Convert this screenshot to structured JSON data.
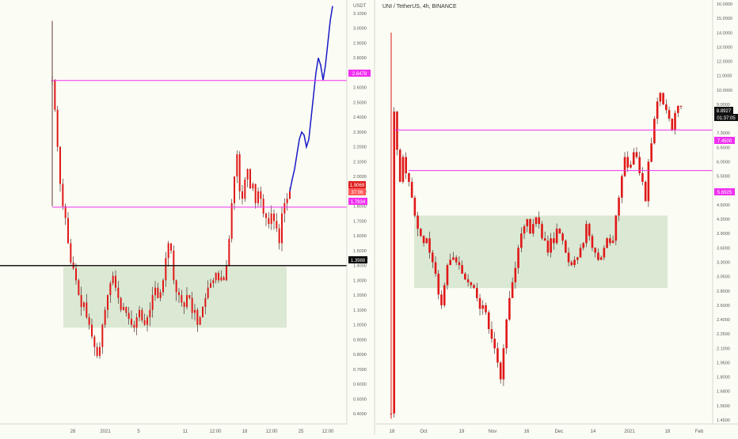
{
  "colors": {
    "background": "#fbfcf3",
    "panel_border": "#d8d8d0",
    "axis_text": "#5c5c5c",
    "candle": "#e01818",
    "candle_wick": "#3a1010",
    "magenta": "#f030f0",
    "zone": "#dbe8d3",
    "projection": "#1a1ac8",
    "black_line": "#000000",
    "volume_bar": "#e06060"
  },
  "left_chart": {
    "currency_label": "USDT",
    "price_tags": {
      "upper_level": "2.6478",
      "current_price": "1.9069",
      "countdown": "37:06",
      "lower_level": "1.7934",
      "black_level": "1.3988"
    }
  },
  "right_chart": {
    "title": "UNI / TetherUS, 4h, BINANCE",
    "price_tags": {
      "current_price": "8.8927",
      "countdown": "01:37:05",
      "upper_level": "7.4500",
      "lower_level": "5.6925"
    }
  },
  "chart_data": [
    {
      "type": "line",
      "title": "",
      "xlabel": "",
      "ylabel": "",
      "y_axis": {
        "scale": "linear",
        "ticks": [
          "3.1000",
          "3.0000",
          "2.9000",
          "2.8000",
          "2.7000",
          "2.6000",
          "2.5000",
          "2.4000",
          "2.3000",
          "2.2000",
          "2.1000",
          "2.0000",
          "1.9000",
          "1.8000",
          "1.7000",
          "1.6000",
          "1.5000",
          "1.4000",
          "1.3000",
          "1.2000",
          "1.1000",
          "1.0000",
          "0.9000",
          "0.8000",
          "0.7000",
          "0.6000",
          "0.5000",
          "0.4000"
        ]
      },
      "x_axis": {
        "ticks": [
          "28",
          "2021",
          "5",
          "11",
          "12:00",
          "18",
          "12:00",
          "25",
          "12:00"
        ]
      },
      "horizontal_levels": [
        {
          "value": 2.6478,
          "color": "magenta"
        },
        {
          "value": 1.7934,
          "color": "magenta"
        },
        {
          "value": 1.3988,
          "color": "black"
        }
      ],
      "zone": {
        "low": 0.98,
        "high": 1.39
      },
      "series": [
        {
          "values": [
            2.65,
            2.45,
            2.2,
            1.95,
            1.8,
            1.72,
            1.55,
            1.42,
            1.38,
            1.3,
            1.2,
            1.12,
            1.15,
            1.05,
            1.0,
            0.92,
            0.85,
            0.79,
            0.85,
            1.0,
            1.1,
            1.2,
            1.28,
            1.33,
            1.25,
            1.18,
            1.1,
            1.12,
            1.08,
            1.04,
            1.0,
            0.98,
            1.05,
            1.1,
            1.03,
            1.0,
            1.05,
            1.1,
            1.2,
            1.25,
            1.18,
            1.22,
            1.3,
            1.45,
            1.55,
            1.5,
            1.3,
            1.22,
            1.2,
            1.15,
            1.12,
            1.2,
            1.18,
            1.08,
            1.1,
            1.0,
            1.05,
            1.12,
            1.18,
            1.25,
            1.28,
            1.3,
            1.35,
            1.3,
            1.32,
            1.3,
            1.4,
            1.58,
            1.82,
            2.0,
            2.15,
            1.9,
            1.85,
            1.98,
            2.05,
            1.92,
            1.95,
            1.82,
            1.9,
            1.85,
            1.75,
            1.72,
            1.68,
            1.75,
            1.7,
            1.65,
            1.55,
            1.75,
            1.82,
            1.85,
            1.9
          ]
        },
        {
          "name": "",
          "values": [
            1.9,
            1.98,
            2.05,
            2.15,
            2.25,
            2.3,
            2.28,
            2.2,
            2.25,
            2.4,
            2.55,
            2.7,
            2.8,
            2.75,
            2.65,
            2.75,
            2.9,
            3.05,
            3.15
          ]
        }
      ]
    },
    {
      "type": "line",
      "title": "UNI / TetherUS, 4h, BINANCE",
      "xlabel": "",
      "ylabel": "",
      "y_axis": {
        "scale": "log",
        "ticks": [
          "16.0000",
          "15.0000",
          "14.0000",
          "13.0000",
          "12.0000",
          "11.0000",
          "10.0000",
          "9.0000",
          "8.0000",
          "7.3000",
          "6.6000",
          "6.0000",
          "5.5000",
          "5.0000",
          "4.6000",
          "4.2000",
          "3.9000",
          "3.6000",
          "3.3000",
          "3.0500",
          "2.8000",
          "2.6000",
          "2.4000",
          "2.2500",
          "2.1000",
          "1.9500",
          "1.8000",
          "1.6800",
          "1.5600",
          "1.4500"
        ]
      },
      "x_axis": {
        "ticks": [
          "18",
          "Oct",
          "19",
          "Nov",
          "16",
          "Dec",
          "14",
          "2021",
          "18",
          "Feb"
        ]
      },
      "horizontal_levels": [
        {
          "value": 7.45,
          "color": "magenta"
        },
        {
          "value": 5.6925,
          "color": "magenta"
        }
      ],
      "zone": {
        "low": 2.85,
        "high": 4.3
      },
      "series": [
        {
          "values": [
            1.5,
            8.5,
            6.5,
            5.3,
            6.2,
            5.6,
            5.3,
            4.8,
            4.3,
            4.0,
            3.85,
            3.7,
            3.8,
            3.5,
            3.3,
            3.1,
            2.75,
            2.6,
            2.9,
            3.25,
            3.35,
            3.4,
            3.3,
            3.25,
            3.1,
            3.0,
            2.95,
            2.9,
            2.85,
            2.7,
            2.55,
            2.6,
            2.5,
            2.3,
            2.2,
            2.1,
            1.95,
            1.78,
            2.1,
            2.4,
            2.7,
            2.95,
            3.2,
            3.6,
            3.9,
            4.05,
            4.2,
            3.9,
            4.1,
            4.25,
            4.1,
            3.8,
            3.75,
            3.5,
            3.8,
            3.7,
            4.0,
            3.9,
            3.75,
            3.5,
            3.3,
            3.25,
            3.35,
            3.4,
            3.6,
            3.7,
            4.1,
            3.85,
            3.6,
            3.5,
            3.35,
            3.4,
            3.6,
            3.8,
            3.7,
            3.75,
            4.3,
            4.8,
            5.5,
            6.2,
            5.8,
            5.9,
            6.4,
            6.2,
            5.6,
            5.3,
            4.7,
            6.0,
            6.8,
            8.0,
            9.2,
            9.8,
            9.0,
            8.6,
            8.0,
            7.45,
            8.4,
            8.9,
            8.9
          ]
        }
      ]
    }
  ]
}
